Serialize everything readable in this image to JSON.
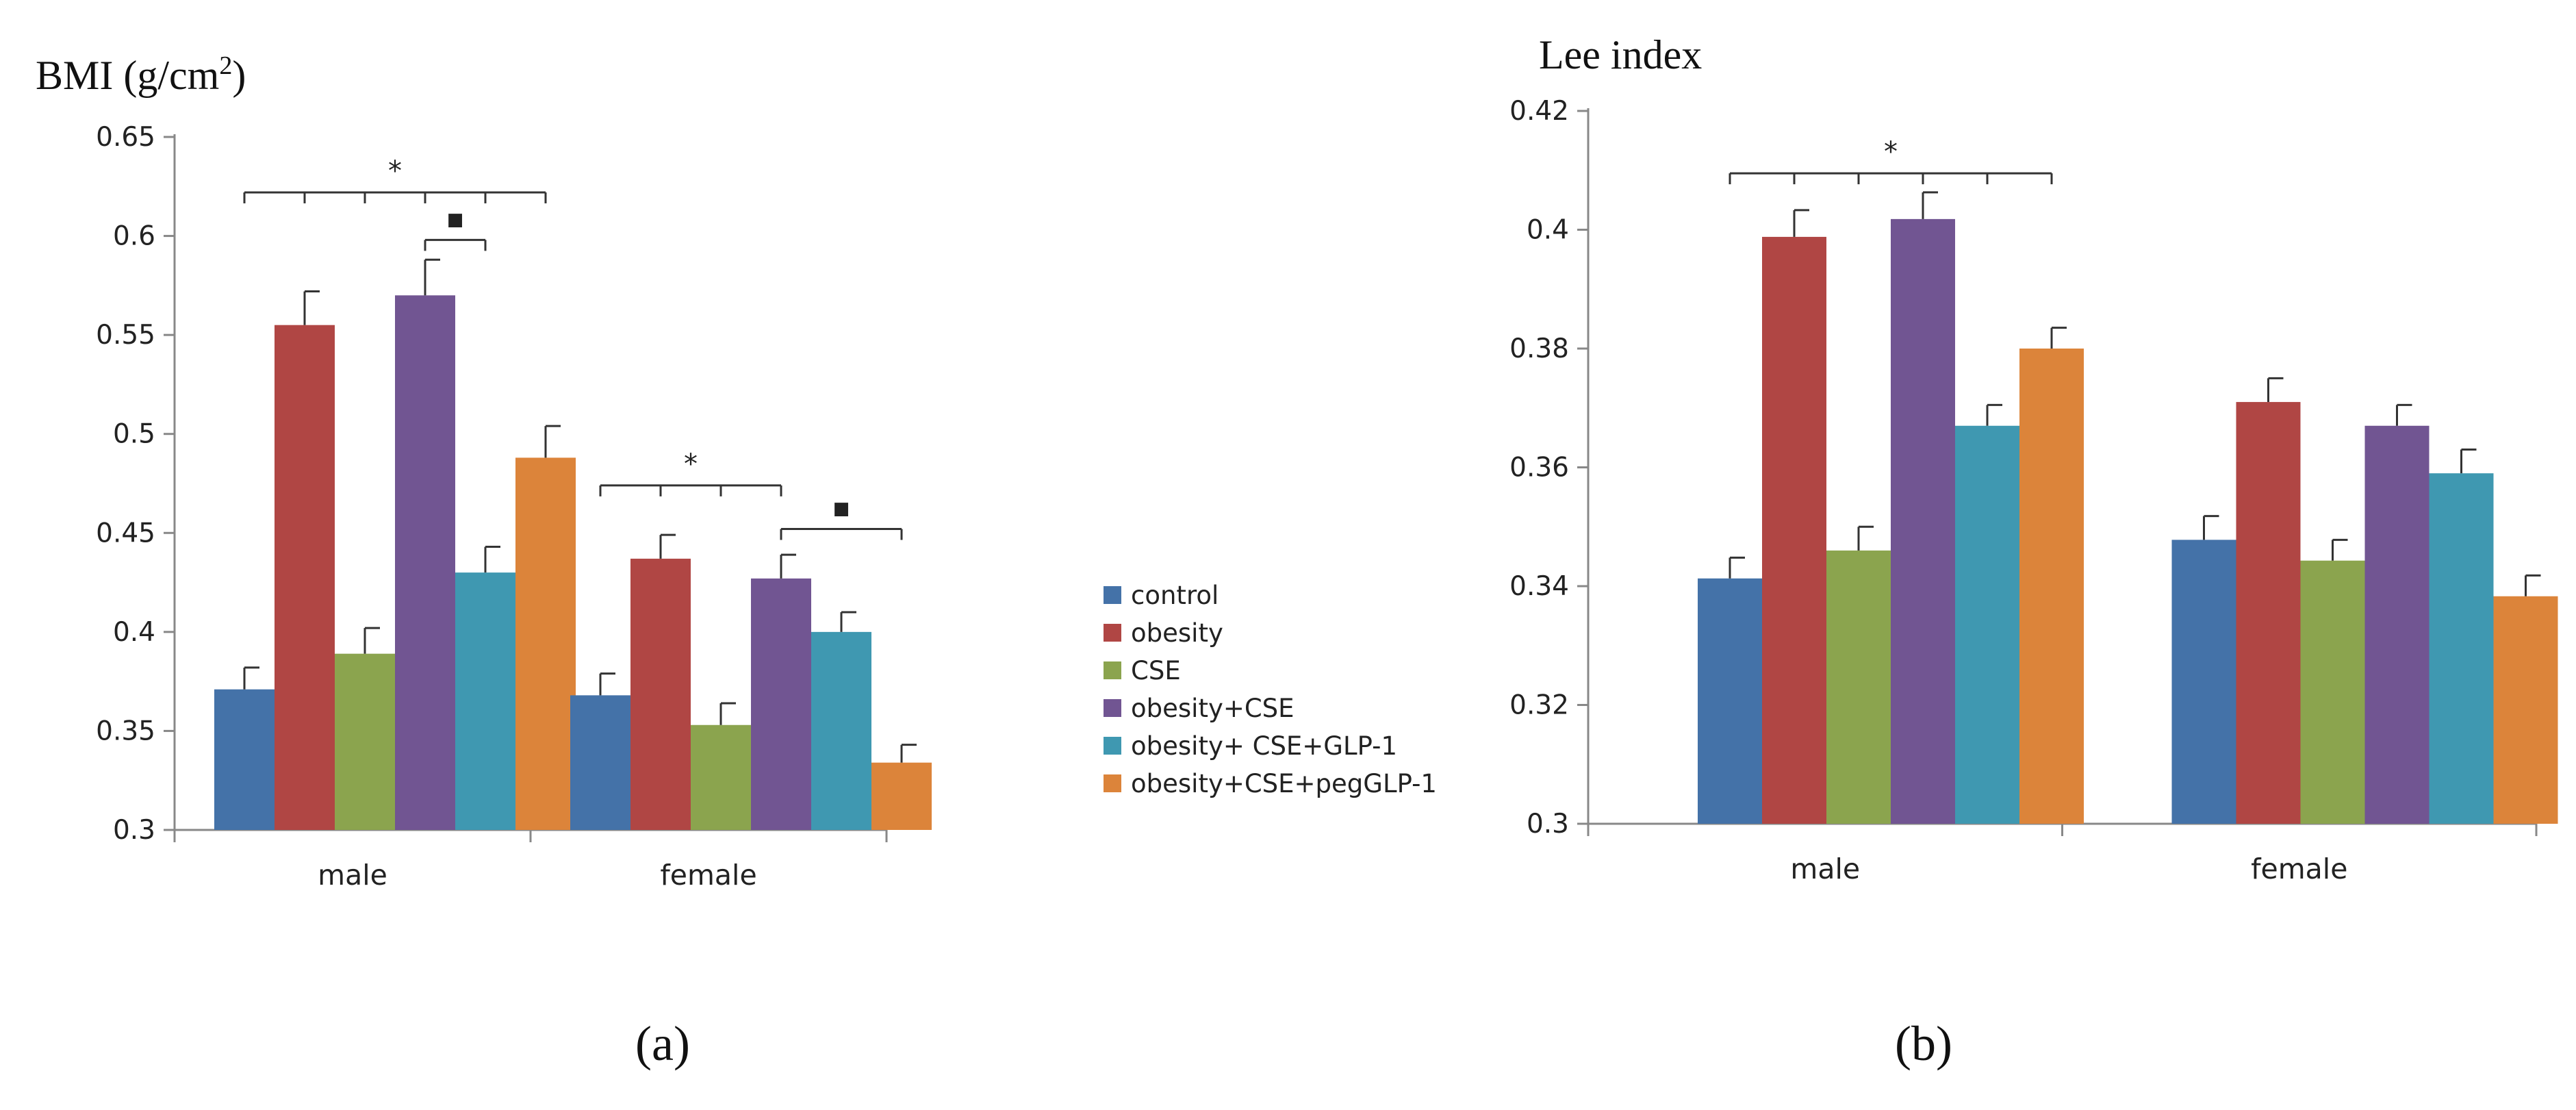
{
  "colors": {
    "control": "#4472a8",
    "obesity": "#b04644",
    "CSE": "#8ba44e",
    "obesity+CSE": "#715592",
    "obesity+ CSE+GLP-1": "#3f98b1",
    "obesity+CSE+pegGLP-1": "#dc843a"
  },
  "legend": [
    "control",
    "obesity",
    "CSE",
    "obesity+CSE",
    "obesity+ CSE+GLP-1",
    "obesity+CSE+pegGLP-1"
  ],
  "panel_labels": [
    "(a)",
    "(b)"
  ],
  "chart_data": [
    {
      "type": "bar",
      "title": "",
      "ylabel": "BMI (g/cm",
      "ylabel_sup": "2",
      "ylabel_end": ")",
      "ylim": [
        0.3,
        0.65
      ],
      "yticks": [
        "0.3",
        "0.35",
        "0.4",
        "0.45",
        "0.5",
        "0.55",
        "0.6",
        "0.65"
      ],
      "categories": [
        "male",
        "female"
      ],
      "series": [
        {
          "name": "control",
          "values": [
            0.371,
            0.368
          ],
          "errors": [
            0.011,
            0.011
          ]
        },
        {
          "name": "obesity",
          "values": [
            0.555,
            0.437
          ],
          "errors": [
            0.017,
            0.012
          ]
        },
        {
          "name": "CSE",
          "values": [
            0.389,
            0.353
          ],
          "errors": [
            0.013,
            0.011
          ]
        },
        {
          "name": "obesity+CSE",
          "values": [
            0.57,
            0.427
          ],
          "errors": [
            0.018,
            0.012
          ]
        },
        {
          "name": "obesity+ CSE+GLP-1",
          "values": [
            0.43,
            0.4
          ],
          "errors": [
            0.013,
            0.01
          ]
        },
        {
          "name": "obesity+CSE+pegGLP-1",
          "values": [
            0.488,
            0.334
          ],
          "errors": [
            0.016,
            0.009
          ]
        }
      ],
      "annotations": [
        {
          "label": "*",
          "category": 0,
          "from": 0,
          "to": 5,
          "level": 0.622,
          "tick_each": true
        },
        {
          "label": "▪",
          "category": 0,
          "from": 3,
          "to": 4,
          "level": 0.598,
          "tick_each": false
        },
        {
          "label": "*",
          "category": 1,
          "from": 0,
          "to": 3,
          "level": 0.474,
          "tick_each": true
        },
        {
          "label": "▪",
          "category": 1,
          "from": 3,
          "to": 5,
          "level": 0.452,
          "tick_each": false
        }
      ]
    },
    {
      "type": "bar",
      "title": "",
      "ylabel": "Lee index",
      "ylim": [
        0.3,
        0.42
      ],
      "yticks": [
        "0.3",
        "0.32",
        "0.34",
        "0.36",
        "0.38",
        "0.4",
        "0.42"
      ],
      "categories": [
        "male",
        "female"
      ],
      "series": [
        {
          "name": "control",
          "values": [
            0.3413,
            0.3478
          ],
          "errors": [
            0.0035,
            0.004
          ]
        },
        {
          "name": "obesity",
          "values": [
            0.3988,
            0.371
          ],
          "errors": [
            0.0045,
            0.004
          ]
        },
        {
          "name": "CSE",
          "values": [
            0.346,
            0.3443
          ],
          "errors": [
            0.004,
            0.0035
          ]
        },
        {
          "name": "obesity+CSE",
          "values": [
            0.4018,
            0.367
          ],
          "errors": [
            0.0045,
            0.0035
          ]
        },
        {
          "name": "obesity+ CSE+GLP-1",
          "values": [
            0.367,
            0.359
          ],
          "errors": [
            0.0035,
            0.004
          ]
        },
        {
          "name": "obesity+CSE+pegGLP-1",
          "values": [
            0.38,
            0.3383
          ],
          "errors": [
            0.0035,
            0.0035
          ]
        }
      ],
      "annotations": [
        {
          "label": "*",
          "category": 0,
          "from": 0,
          "to": 5,
          "level": 0.4095,
          "tick_each": true
        }
      ]
    }
  ]
}
